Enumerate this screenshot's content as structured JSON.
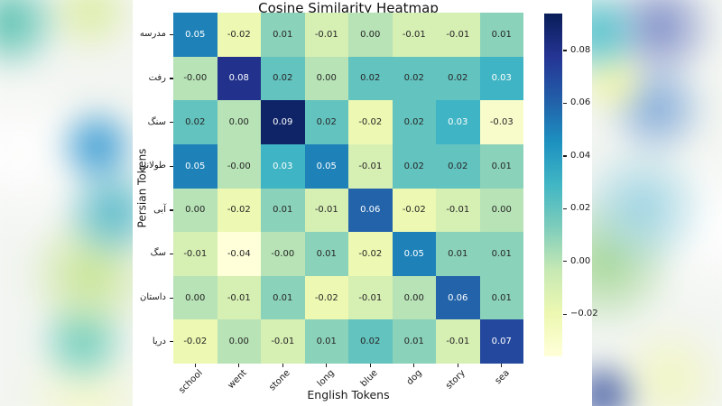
{
  "chart_data": {
    "type": "heatmap",
    "title": "Cosine Similarity Heatmap",
    "xlabel": "English Tokens",
    "ylabel": "Persian Tokens",
    "x_categories": [
      "school",
      "went",
      "stone",
      "long",
      "blue",
      "dog",
      "story",
      "sea"
    ],
    "y_categories": [
      "مدرسه",
      "رفت",
      "سنگ",
      "طولانی",
      "آبی",
      "سگ",
      "داستان",
      "دریا"
    ],
    "cells": [
      [
        "0.05",
        "-0.02",
        "0.01",
        "-0.01",
        "0.00",
        "-0.01",
        "-0.01",
        "0.01"
      ],
      [
        "-0.00",
        "0.08",
        "0.02",
        "0.00",
        "0.02",
        "0.02",
        "0.02",
        "0.03"
      ],
      [
        "0.02",
        "0.00",
        "0.09",
        "0.02",
        "-0.02",
        "0.02",
        "0.03",
        "-0.03"
      ],
      [
        "0.05",
        "-0.00",
        "0.03",
        "0.05",
        "-0.01",
        "0.02",
        "0.02",
        "0.01"
      ],
      [
        "0.00",
        "-0.02",
        "0.01",
        "-0.01",
        "0.06",
        "-0.02",
        "-0.01",
        "0.00"
      ],
      [
        "-0.01",
        "-0.04",
        "-0.00",
        "0.01",
        "-0.02",
        "0.05",
        "0.01",
        "0.01"
      ],
      [
        "0.00",
        "-0.01",
        "0.01",
        "-0.02",
        "-0.01",
        "0.00",
        "0.06",
        "0.01"
      ],
      [
        "-0.02",
        "0.00",
        "-0.01",
        "0.01",
        "0.02",
        "0.01",
        "-0.01",
        "0.07"
      ]
    ],
    "colormap": {
      "name": "YlGnBu",
      "stops": [
        "#ffffd9",
        "#edf8b1",
        "#c7e9b4",
        "#7fcdbb",
        "#41b6c4",
        "#1d91c0",
        "#225ea8",
        "#253494",
        "#081d58"
      ]
    },
    "vmin": -0.036,
    "vmax": 0.094,
    "annotation_colors": {
      "light": "#ffffff",
      "dark": "#262626"
    },
    "colorbar": {
      "ticks": [
        {
          "label": "0.08",
          "value": 0.08
        },
        {
          "label": "0.06",
          "value": 0.06
        },
        {
          "label": "0.04",
          "value": 0.04
        },
        {
          "label": "0.02",
          "value": 0.02
        },
        {
          "label": "0.00",
          "value": 0.0
        },
        {
          "label": "−0.02",
          "value": -0.02
        }
      ]
    },
    "legend_position": "right-colorbar",
    "grid": false
  }
}
